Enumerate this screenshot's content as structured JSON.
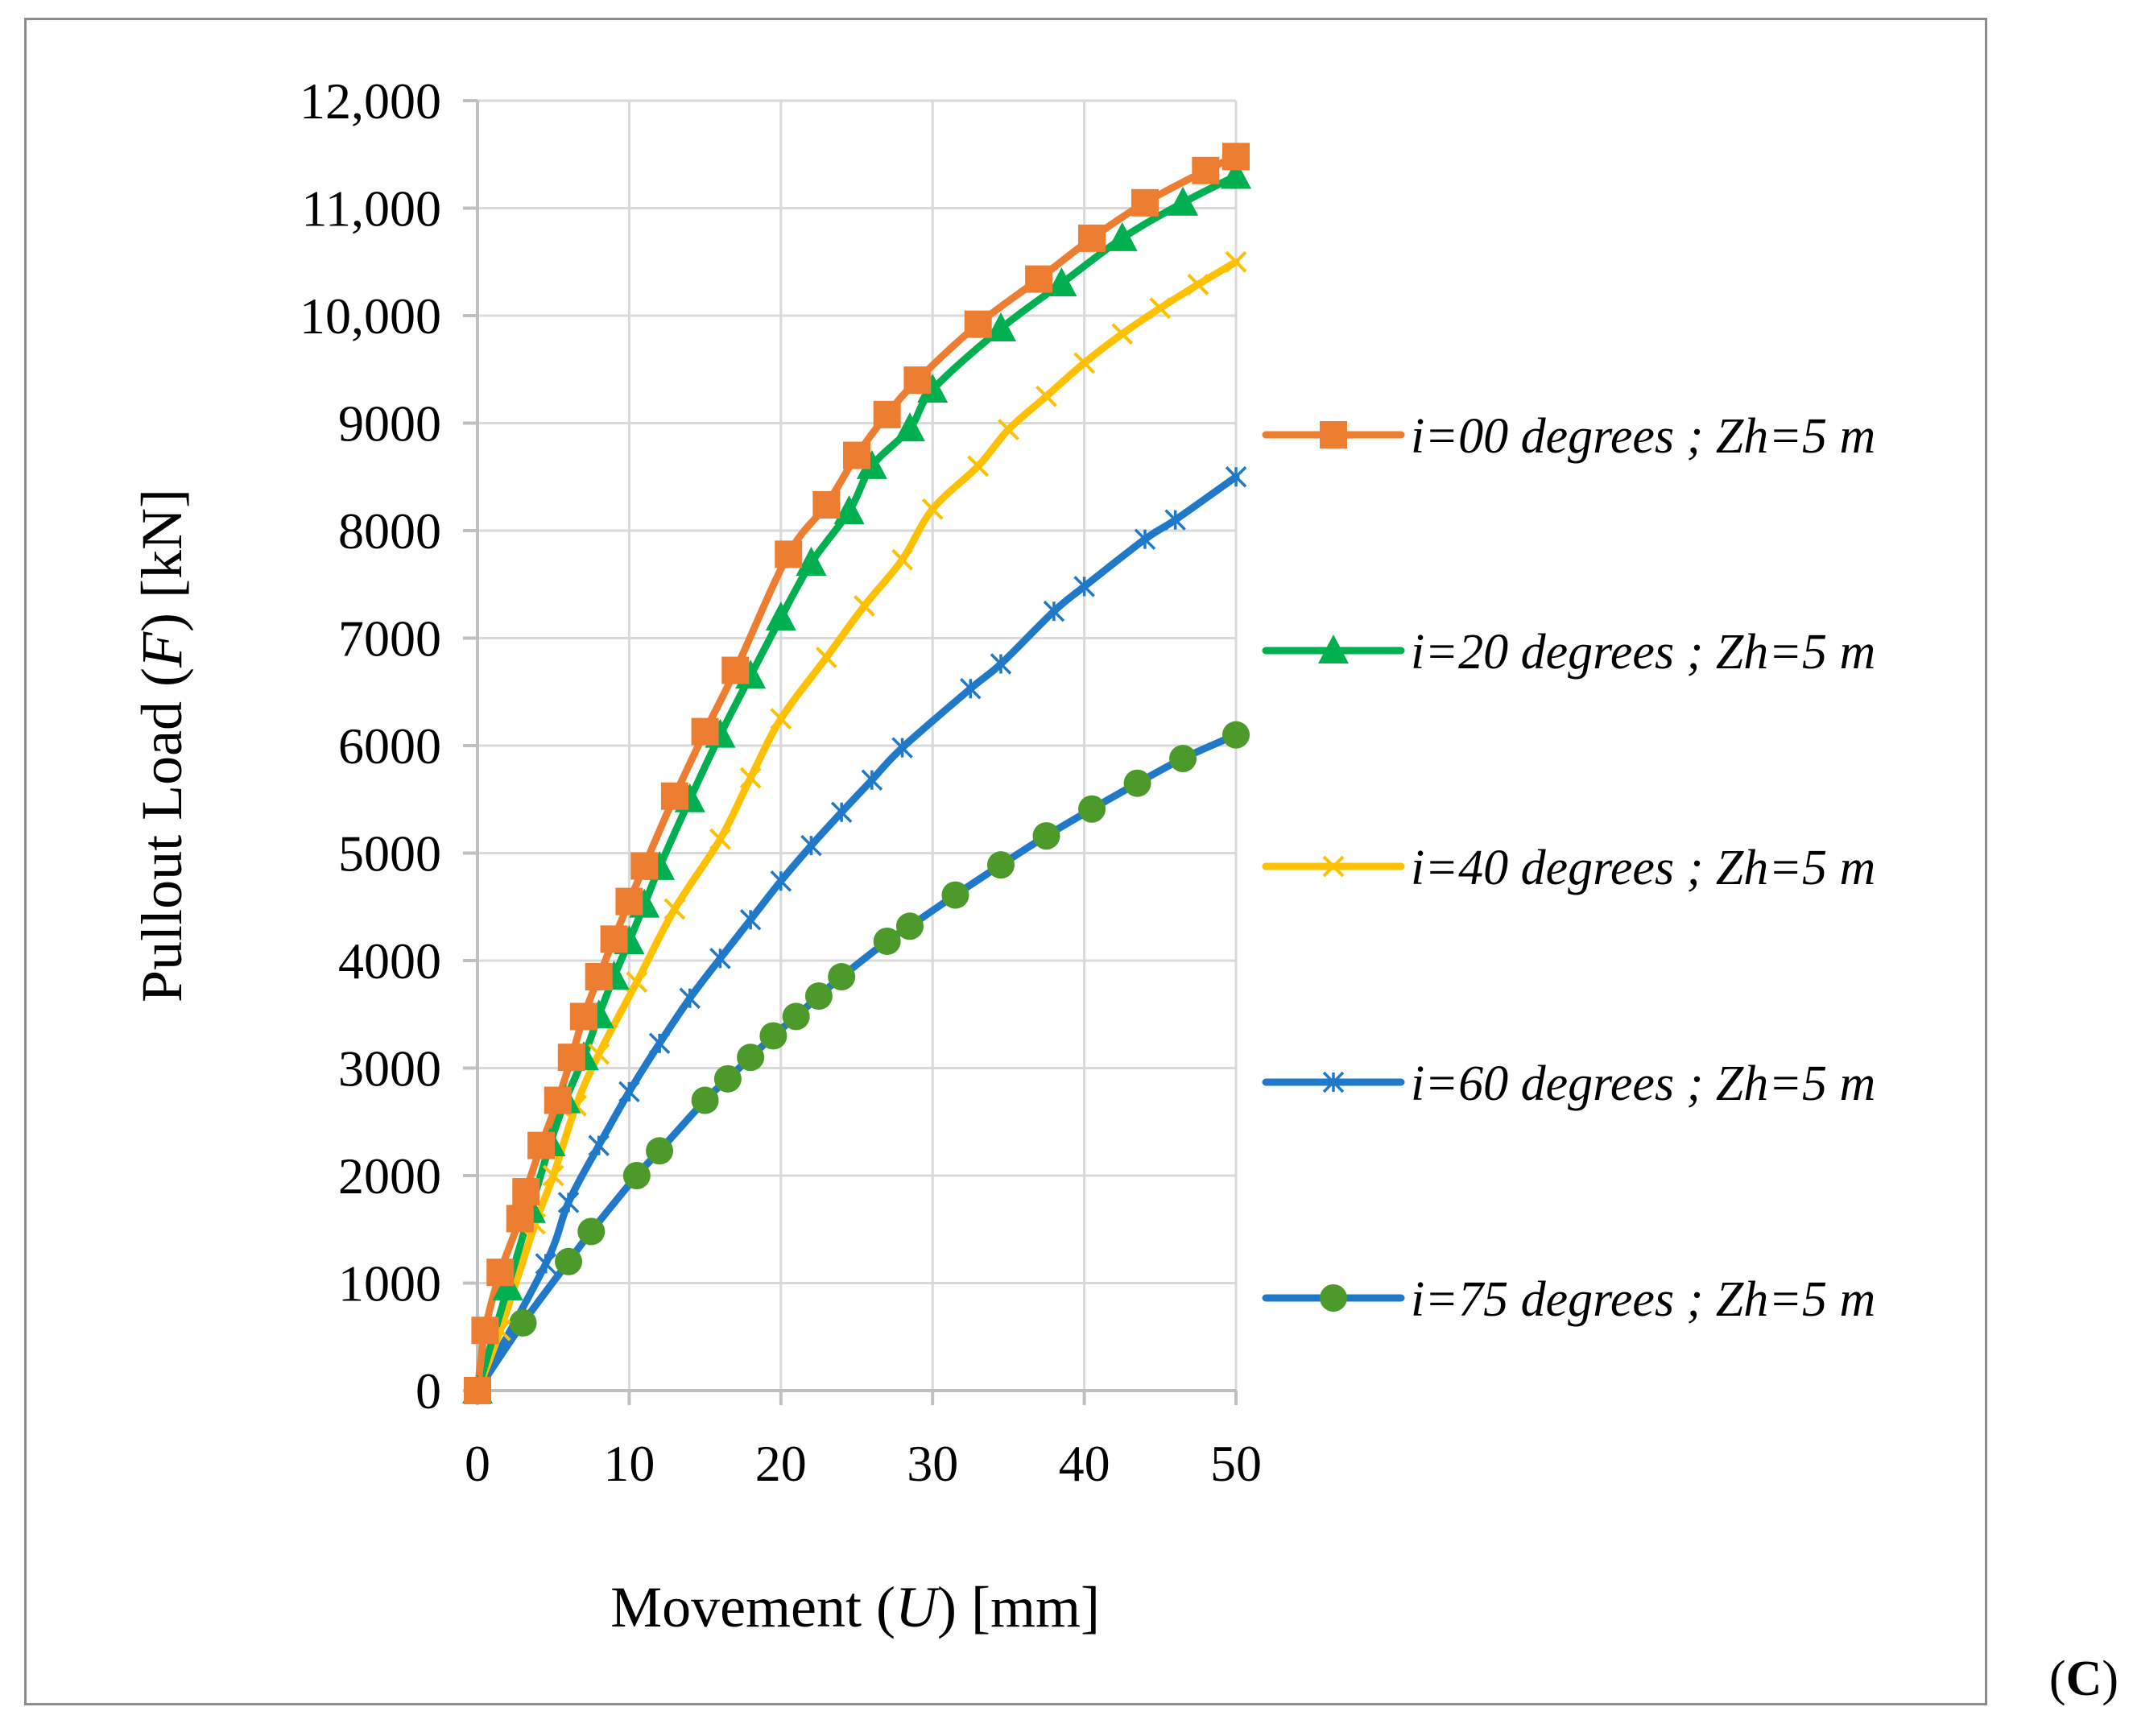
{
  "panel_label": {
    "open": "(",
    "letter": "C",
    "close": ")"
  },
  "chart_data": {
    "type": "line",
    "xlabel_parts": [
      "Movement (",
      "U",
      ") [mm]"
    ],
    "ylabel_parts": [
      "Pullout  Load (",
      "F",
      ") [kN]"
    ],
    "xlim": [
      0,
      50
    ],
    "ylim": [
      0,
      12000
    ],
    "x_ticks": [
      0,
      10,
      20,
      30,
      40,
      50
    ],
    "x_tick_labels": [
      "0",
      "10",
      "20",
      "30",
      "40",
      "50"
    ],
    "y_ticks": [
      0,
      1000,
      2000,
      3000,
      4000,
      5000,
      6000,
      7000,
      8000,
      9000,
      10000,
      11000,
      12000
    ],
    "y_tick_labels": [
      "0",
      "1000",
      "2000",
      "3000",
      "4000",
      "5000",
      "6000",
      "7000",
      "8000",
      "9000",
      "10,000",
      "11,000",
      "12,000"
    ],
    "grid": true,
    "legend_position": "right",
    "series": [
      {
        "name": "i=00 degrees ; Zh=5 m",
        "color": "#ED7D31",
        "marker": "square",
        "x": [
          0,
          0.5,
          1.5,
          2.8,
          3.2,
          4.2,
          5.3,
          6.2,
          7.0,
          8.0,
          9.0,
          10.0,
          11.0,
          13.0,
          15.0,
          17.0,
          20.5,
          23.0,
          25.0,
          27.0,
          29.0,
          33.0,
          37.0,
          40.5,
          44.0,
          48.0,
          50
        ],
        "y": [
          0,
          560,
          1100,
          1600,
          1850,
          2280,
          2700,
          3100,
          3480,
          3850,
          4200,
          4550,
          4880,
          5530,
          6130,
          6700,
          7780,
          8240,
          8700,
          9080,
          9400,
          9920,
          10340,
          10720,
          11050,
          11350,
          11480
        ]
      },
      {
        "name": "i=20 degrees ; Zh=5 m",
        "color": "#00B050",
        "marker": "triangle",
        "x": [
          0,
          2.0,
          3.5,
          4.8,
          5.8,
          7.0,
          8.0,
          9.0,
          10.0,
          11.0,
          12.0,
          14.0,
          16.0,
          18.0,
          20.0,
          22.0,
          24.5,
          26.0,
          28.5,
          30.0,
          34.5,
          38.5,
          42.5,
          46.5,
          50
        ],
        "y": [
          0,
          960,
          1680,
          2300,
          2700,
          3100,
          3490,
          3850,
          4180,
          4520,
          4870,
          5500,
          6100,
          6650,
          7190,
          7700,
          8180,
          8600,
          8950,
          9310,
          9880,
          10300,
          10720,
          11050,
          11300
        ]
      },
      {
        "name": "i=40 degrees ; Zh=5 m",
        "color": "#FFC000",
        "marker": "x",
        "x": [
          0,
          1.5,
          3.8,
          5.0,
          6.5,
          8.0,
          10.5,
          13.0,
          16.0,
          18.0,
          20.0,
          23.0,
          25.5,
          28.0,
          30.0,
          33.0,
          35.0,
          37.5,
          40.0,
          42.5,
          45.0,
          47.5,
          50
        ],
        "y": [
          0,
          560,
          1550,
          2000,
          2650,
          3130,
          3800,
          4480,
          5130,
          5700,
          6250,
          6820,
          7300,
          7730,
          8200,
          8600,
          8940,
          9250,
          9560,
          9830,
          10070,
          10290,
          10500
        ]
      },
      {
        "name": "i=60 degrees ; Zh=5 m",
        "color": "#1F78C8",
        "marker": "star",
        "x": [
          0,
          4.5,
          6.0,
          8.0,
          10.0,
          12.0,
          14.0,
          16.0,
          18.0,
          20.0,
          22.0,
          24.0,
          26.0,
          28.0,
          32.5,
          34.5,
          38.0,
          40.0,
          44.0,
          46.0,
          50
        ],
        "y": [
          0,
          1180,
          1750,
          2280,
          2780,
          3230,
          3650,
          4020,
          4380,
          4740,
          5070,
          5380,
          5680,
          5980,
          6530,
          6760,
          7250,
          7480,
          7920,
          8100,
          8500
        ]
      },
      {
        "name": "i=75 degrees ; Zh=5 m",
        "color": "#4C9A2A",
        "line_color": "#1F78C8",
        "marker": "circle",
        "x": [
          0,
          3.0,
          6.0,
          7.5,
          10.5,
          12.0,
          15.0,
          16.5,
          18.0,
          19.5,
          21.0,
          22.5,
          24.0,
          27.0,
          28.5,
          31.5,
          34.5,
          37.5,
          40.5,
          43.5,
          46.5,
          50
        ],
        "y": [
          0,
          630,
          1200,
          1480,
          2000,
          2230,
          2700,
          2900,
          3100,
          3300,
          3480,
          3670,
          3850,
          4180,
          4320,
          4610,
          4890,
          5160,
          5410,
          5650,
          5880,
          6100
        ]
      }
    ]
  }
}
